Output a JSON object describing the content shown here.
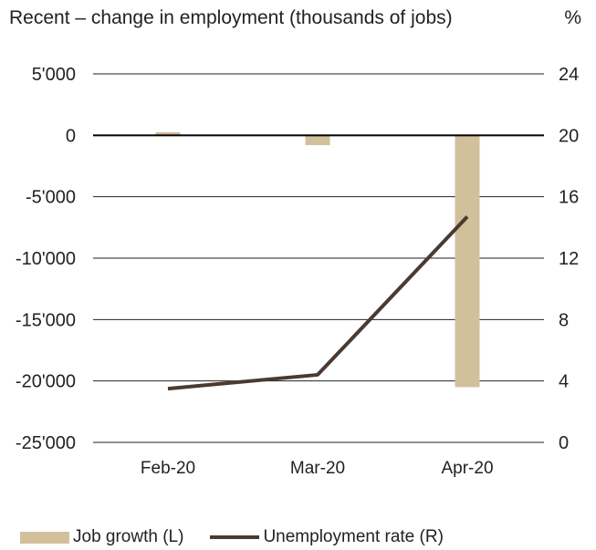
{
  "header": {
    "title": "Recent – change in employment (thousands of jobs)",
    "right_unit": "%"
  },
  "colors": {
    "bar": "#d2bf9c",
    "line": "#4a3a30",
    "grid": "#222222",
    "zero_line": "#000000"
  },
  "chart_data": {
    "type": "bar",
    "title": "Recent – change in employment (thousands of jobs)",
    "categories": [
      "Feb-20",
      "Mar-20",
      "Apr-20"
    ],
    "left_axis": {
      "ticks": [
        5000,
        0,
        -5000,
        -10000,
        -15000,
        -20000,
        -25000
      ],
      "tick_labels": [
        "5'000",
        "0",
        "-5'000",
        "-10'000",
        "-15'000",
        "-20'000",
        "-25'000"
      ],
      "ylim": [
        -25000,
        5000
      ]
    },
    "right_axis": {
      "unit": "%",
      "ticks": [
        24,
        20,
        16,
        12,
        8,
        4,
        0
      ],
      "tick_labels": [
        "24",
        "20",
        "16",
        "12",
        "8",
        "4",
        "0"
      ],
      "ylim": [
        0,
        24
      ]
    },
    "series": [
      {
        "name": "Job growth (L)",
        "type": "bar",
        "axis": "left",
        "values": [
          250,
          -800,
          -20500
        ]
      },
      {
        "name": "Unemployment rate (R)",
        "type": "line",
        "axis": "right",
        "values": [
          3.5,
          4.4,
          14.7
        ]
      }
    ],
    "grid": true,
    "legend": "bottom-left"
  }
}
